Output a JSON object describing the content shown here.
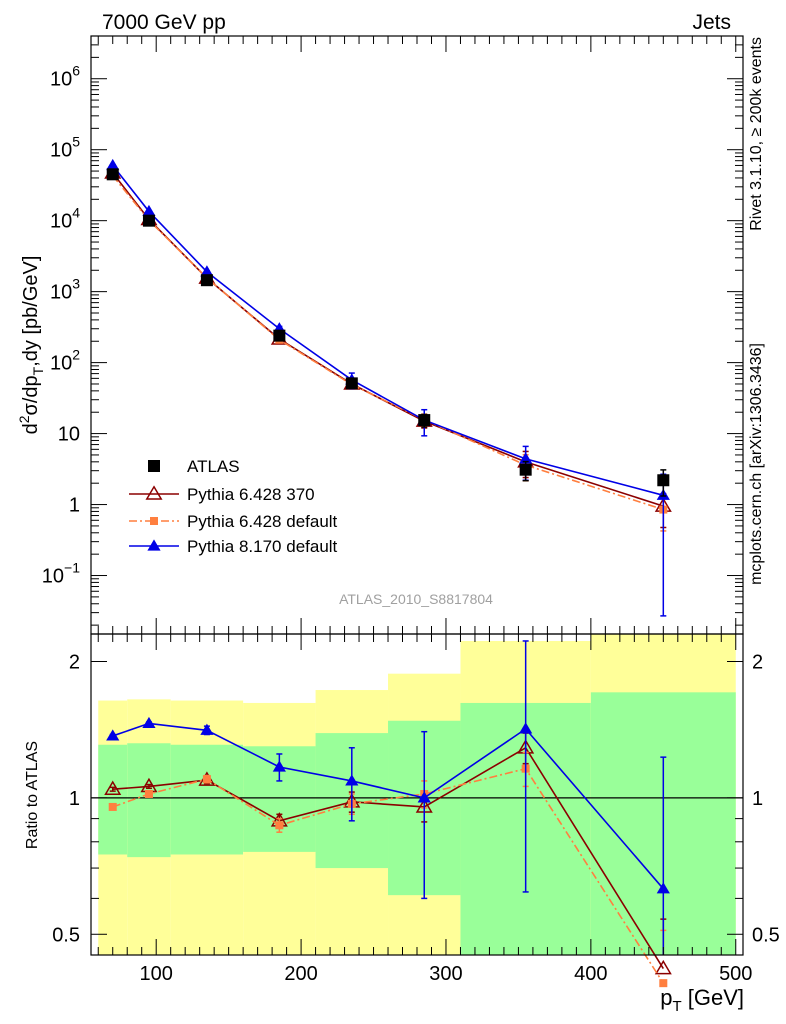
{
  "header": {
    "left": "7000 GeV pp",
    "right": "Jets"
  },
  "side_labels": {
    "rivet": "Rivet 3.1.10, ≥ 200k events",
    "mcplots": "mcplots.cern.ch [arXiv:1306.3436]"
  },
  "analysis_label": "ATLAS_2010_S8817804",
  "colors": {
    "atlas": "#000000",
    "pythia6_370": "#8b0000",
    "pythia6_default": "#ff7f3f",
    "pythia8": "#0000e6",
    "band_yellow": "#ffff99",
    "band_green": "#99ff99"
  },
  "chart_data": [
    {
      "type": "line",
      "panel": "main",
      "ylabel": "d²σ/dp_T,dy [pb/GeV]",
      "xlim": [
        55,
        505
      ],
      "ylim": [
        0.015,
        4000000
      ],
      "yscale": "log",
      "ytick_labels": [
        {
          "value": 1000000,
          "base": "10",
          "exp": "6"
        },
        {
          "value": 100000,
          "base": "10",
          "exp": "5"
        },
        {
          "value": 10000,
          "base": "10",
          "exp": "4"
        },
        {
          "value": 1000,
          "base": "10",
          "exp": "3"
        },
        {
          "value": 100,
          "base": "10",
          "exp": "2"
        },
        {
          "value": 10,
          "base": "10",
          "exp": ""
        },
        {
          "value": 1,
          "base": "1",
          "exp": ""
        },
        {
          "value": 0.1,
          "base": "10",
          "exp": "−1"
        }
      ],
      "legend_position": "lower-left",
      "series": [
        {
          "name": "ATLAS",
          "style": "square",
          "x": [
            70,
            95,
            135,
            185,
            235,
            285,
            355,
            450
          ],
          "y": [
            45000,
            10000,
            1450,
            240,
            51,
            15.5,
            3.1,
            2.2
          ],
          "yerr": [
            0.1,
            0.1,
            0.1,
            0.1,
            0.1,
            0.2,
            0.3,
            0.4
          ]
        },
        {
          "name": "Pythia 6.428 370",
          "style": "open-triangle",
          "x": [
            70,
            95,
            135,
            185,
            235,
            285,
            355,
            450
          ],
          "y": [
            47000,
            10400,
            1550,
            215,
            50,
            15,
            4.0,
            0.95
          ],
          "yerr": [
            0.02,
            0.02,
            0.03,
            0.04,
            0.08,
            0.2,
            0.4,
            0.5
          ]
        },
        {
          "name": "Pythia 6.428 default",
          "style": "square-dashdot",
          "x": [
            70,
            95,
            135,
            185,
            235,
            285,
            355,
            450
          ],
          "y": [
            43000,
            10100,
            1560,
            210,
            49,
            15.7,
            3.6,
            0.85
          ],
          "yerr": [
            0.02,
            0.02,
            0.03,
            0.04,
            0.08,
            0.2,
            0.4,
            0.5
          ]
        },
        {
          "name": "Pythia 8.170 default",
          "style": "triangle",
          "x": [
            70,
            95,
            135,
            185,
            235,
            285,
            355,
            450
          ],
          "y": [
            60000,
            13500,
            1900,
            300,
            57,
            15.5,
            4.4,
            1.35
          ],
          "yerr": [
            0.02,
            0.02,
            0.03,
            0.08,
            0.25,
            0.4,
            0.5,
            0.98
          ]
        }
      ]
    },
    {
      "type": "line",
      "panel": "ratio",
      "ylabel": "Ratio to ATLAS",
      "xlabel_base": "p",
      "xlabel_sub": "T",
      "xlabel_unit": " [GeV]",
      "xlim": [
        55,
        505
      ],
      "ylim": [
        0.45,
        2.3
      ],
      "yscale": "log",
      "xtick_labels": [
        "100",
        "200",
        "300",
        "400",
        "500"
      ],
      "xticks": [
        100,
        200,
        300,
        400,
        500
      ],
      "ytick_labels": [
        "0.5",
        "1",
        "2"
      ],
      "yticks": [
        0.5,
        1,
        2
      ],
      "bands": {
        "edges": [
          60,
          80,
          110,
          160,
          210,
          260,
          310,
          400,
          500
        ],
        "yellow_low": [
          0.35,
          0.35,
          0.35,
          0.38,
          0.35,
          0.35,
          0.35,
          0.35
        ],
        "yellow_high": [
          1.64,
          1.65,
          1.64,
          1.62,
          1.73,
          1.88,
          2.22,
          2.4
        ],
        "green_low": [
          0.75,
          0.74,
          0.75,
          0.76,
          0.7,
          0.61,
          0.37,
          0.35
        ],
        "green_high": [
          1.31,
          1.32,
          1.31,
          1.3,
          1.39,
          1.48,
          1.62,
          1.71
        ]
      },
      "series": [
        {
          "name": "Pythia 6.428 370",
          "style": "open-triangle",
          "x": [
            70,
            95,
            135,
            185,
            235,
            285,
            355,
            450
          ],
          "y": [
            1.045,
            1.06,
            1.095,
            0.89,
            0.98,
            0.955,
            1.29,
            0.42
          ],
          "yerr": [
            0.01,
            0.01,
            0.02,
            0.03,
            0.05,
            0.07,
            0.1,
            0.12
          ]
        },
        {
          "name": "Pythia 6.428 default",
          "style": "square-dashdot",
          "x": [
            70,
            95,
            135,
            185,
            235,
            285,
            355,
            450
          ],
          "y": [
            0.955,
            1.02,
            1.1,
            0.87,
            0.97,
            1.02,
            1.16,
            0.39
          ],
          "yerr": [
            0.01,
            0.01,
            0.02,
            0.03,
            0.05,
            0.07,
            0.1,
            0.12
          ]
        },
        {
          "name": "Pythia 8.170 default",
          "style": "triangle",
          "x": [
            70,
            95,
            135,
            185,
            235,
            285,
            355,
            450
          ],
          "y": [
            1.37,
            1.46,
            1.41,
            1.17,
            1.09,
            1.0,
            1.42,
            0.63
          ],
          "yerr": [
            0.01,
            0.01,
            0.03,
            0.08,
            0.2,
            0.4,
            0.8,
            0.6
          ]
        }
      ]
    }
  ]
}
